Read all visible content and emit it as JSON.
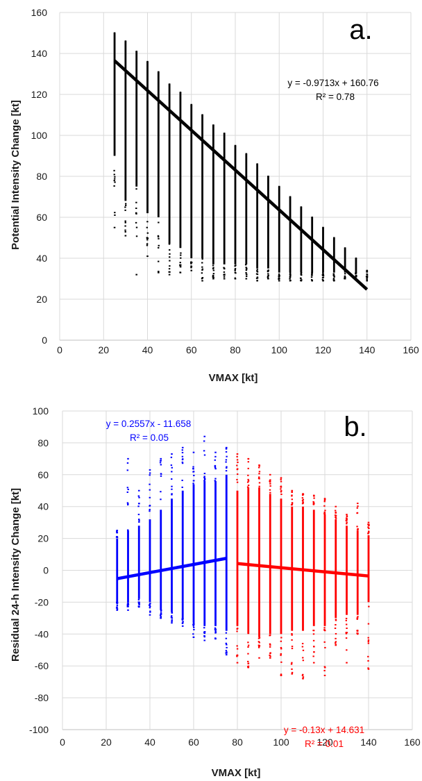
{
  "chart_data": [
    {
      "type": "scatter",
      "panel_label": "a.",
      "xlabel": "VMAX [kt]",
      "ylabel": "Potential Intensity Change [kt]",
      "xlim": [
        0,
        160
      ],
      "ylim": [
        0,
        160
      ],
      "xticks": [
        "0",
        "20",
        "40",
        "60",
        "80",
        "100",
        "120",
        "140",
        "160"
      ],
      "yticks": [
        "0",
        "20",
        "40",
        "60",
        "80",
        "100",
        "120",
        "140",
        "160"
      ],
      "grid": true,
      "legend": "none",
      "series": [
        {
          "color": "#000000",
          "x": [
            25,
            30,
            35,
            40,
            45,
            50,
            55,
            60,
            65,
            70,
            75,
            80,
            85,
            90,
            95,
            100,
            105,
            110,
            115,
            120,
            125,
            130,
            135,
            140
          ],
          "y_max": [
            150,
            146,
            141,
            136,
            131,
            125,
            121,
            115,
            110,
            105,
            101,
            95,
            91,
            86,
            80,
            75,
            70,
            65,
            60,
            55,
            50,
            45,
            40,
            34
          ],
          "y_min": [
            55,
            51,
            32,
            41,
            33,
            32,
            33,
            34,
            29,
            30,
            30,
            30,
            30,
            29,
            30,
            29,
            29,
            29,
            29,
            29,
            29,
            30,
            30,
            29
          ],
          "dense_min": [
            90,
            68,
            75,
            62,
            60,
            47,
            45,
            40,
            40,
            37,
            37,
            37,
            37,
            35,
            35,
            33,
            33,
            33,
            33,
            33,
            33,
            33,
            33,
            33
          ]
        }
      ],
      "fit": {
        "color": "#000000",
        "slope": -0.9713,
        "intercept": 160.76,
        "x_range": [
          25,
          140
        ],
        "equation": "y = -0.9713x + 160.76",
        "r2": "R² = 0.78"
      }
    },
    {
      "type": "scatter",
      "panel_label": "b.",
      "xlabel": "VMAX [kt]",
      "ylabel": "Residual 24-h Intensity Change [kt]",
      "xlim": [
        0,
        160
      ],
      "ylim": [
        -100,
        100
      ],
      "xticks": [
        "0",
        "20",
        "40",
        "60",
        "80",
        "100",
        "120",
        "140",
        "160"
      ],
      "yticks": [
        "-100",
        "-80",
        "-60",
        "-40",
        "-20",
        "0",
        "20",
        "40",
        "60",
        "80",
        "100"
      ],
      "grid": true,
      "legend": "none",
      "series": [
        {
          "color": "#0000ff",
          "x": [
            25,
            30,
            35,
            40,
            45,
            50,
            55,
            60,
            65,
            70,
            75
          ],
          "y_max": [
            25,
            70,
            50,
            63,
            70,
            73,
            77,
            74,
            84,
            74,
            77
          ],
          "y_min": [
            -25,
            -25,
            -23,
            -28,
            -30,
            -33,
            -35,
            -42,
            -44,
            -43,
            -53
          ],
          "dense_min": [
            -20,
            -20,
            -18,
            -20,
            -25,
            -26,
            -30,
            -33,
            -35,
            -35,
            -38
          ],
          "dense_max": [
            20,
            25,
            28,
            32,
            38,
            45,
            50,
            54,
            56,
            56,
            60
          ]
        },
        {
          "color": "#ff0000",
          "x": [
            80,
            85,
            90,
            95,
            100,
            105,
            110,
            115,
            120,
            125,
            130,
            135,
            140
          ],
          "y_max": [
            73,
            70,
            66,
            60,
            58,
            50,
            48,
            47,
            45,
            40,
            35,
            42,
            30
          ],
          "y_min": [
            -58,
            -61,
            -55,
            -55,
            -66,
            -65,
            -68,
            -58,
            -66,
            -47,
            -58,
            -40,
            -62
          ],
          "dense_min": [
            -35,
            -40,
            -42,
            -40,
            -40,
            -38,
            -38,
            -35,
            -35,
            -30,
            -28,
            -28,
            -20
          ],
          "dense_max": [
            50,
            52,
            52,
            48,
            45,
            40,
            40,
            38,
            35,
            32,
            28,
            25,
            22
          ]
        }
      ],
      "fits": [
        {
          "color": "#0000ff",
          "slope": 0.2557,
          "intercept": -11.658,
          "x_range": [
            25,
            75
          ],
          "equation": "y = 0.2557x - 11.658",
          "r2": "R² = 0.05"
        },
        {
          "color": "#ff0000",
          "slope": -0.13,
          "intercept": 14.631,
          "x_range": [
            80,
            140
          ],
          "equation": "y = -0.13x + 14.631",
          "r2": "R² = 0.01"
        }
      ]
    }
  ]
}
